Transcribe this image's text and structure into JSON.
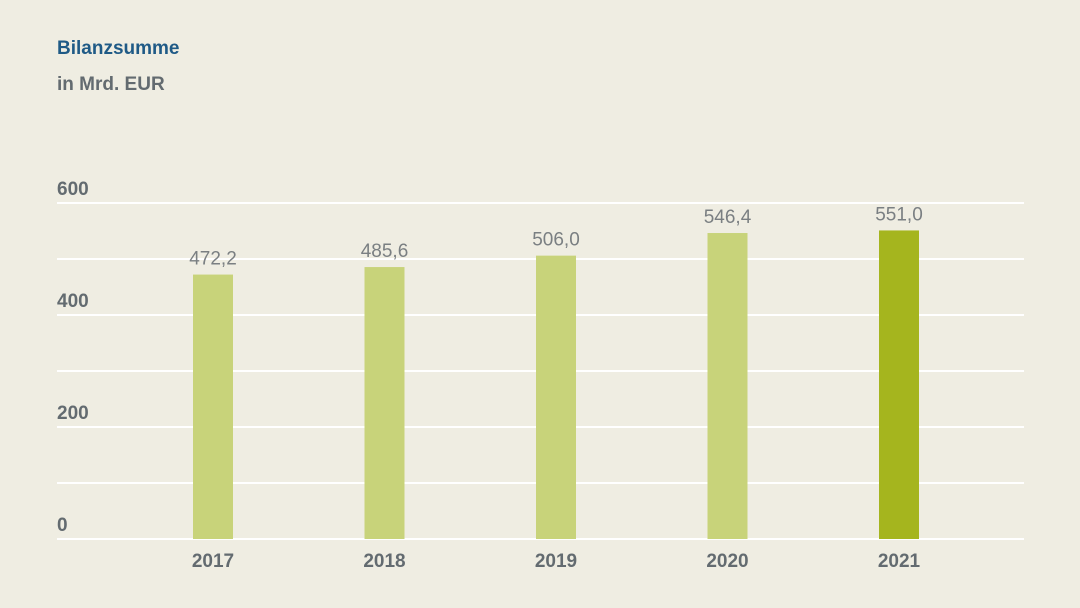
{
  "chart_data": {
    "type": "bar",
    "title": "Bilanzsumme",
    "subtitle": "in Mrd. EUR",
    "categories": [
      "2017",
      "2018",
      "2019",
      "2020",
      "2021"
    ],
    "values": [
      472.2,
      485.6,
      506.0,
      546.4,
      551.0
    ],
    "value_labels": [
      "472,2",
      "485,6",
      "506,0",
      "546,4",
      "551,0"
    ],
    "ylim": [
      0,
      600
    ],
    "y_ticks": [
      0,
      200,
      400,
      600
    ],
    "y_tick_labels": [
      "0",
      "200",
      "400",
      "600"
    ],
    "grid": true,
    "colors": {
      "bar": "#c8d37a",
      "bar_highlight": "#a5b51e",
      "grid": "#ffffff",
      "tick_label": "#636b70",
      "value_label": "#7a7f82",
      "title": "#1f5a86"
    },
    "highlight_index": 4
  }
}
